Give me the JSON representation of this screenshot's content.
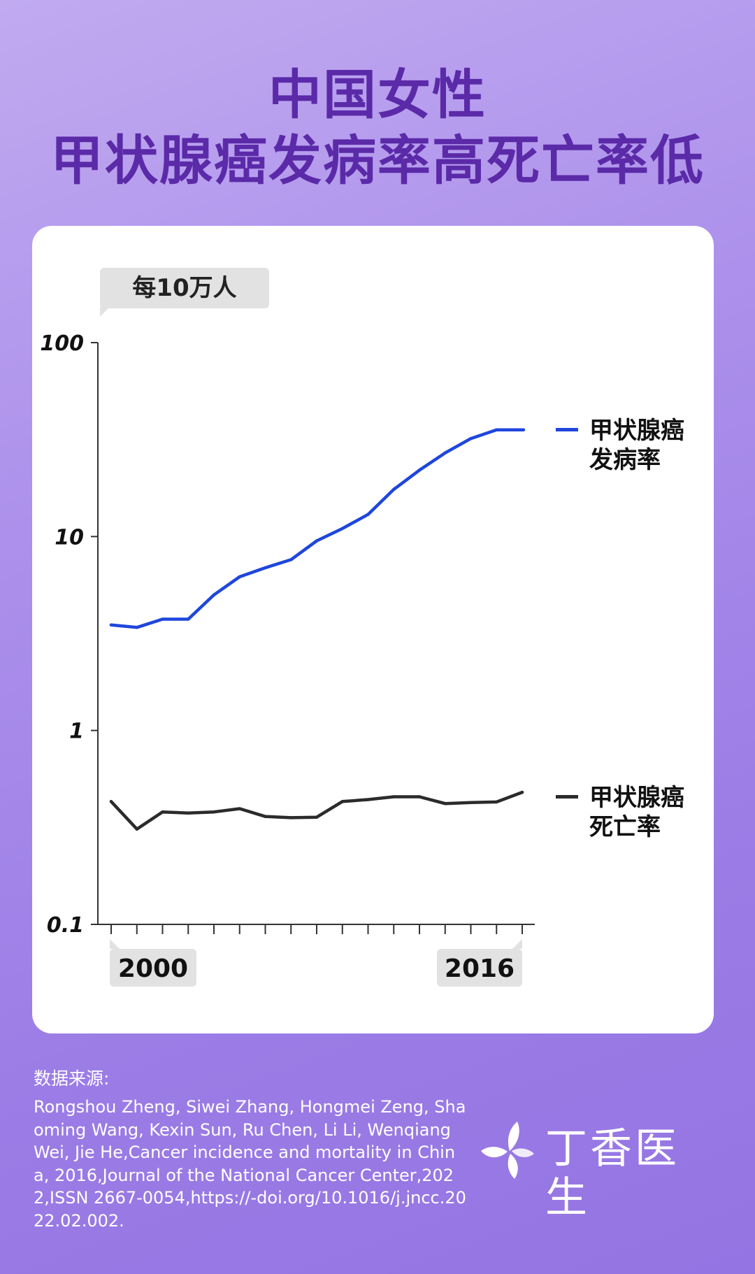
{
  "header": {
    "title_line1": "中国女性",
    "title_line2": "甲状腺癌发病率高死亡率低"
  },
  "chart": {
    "unit_label": "每10万人",
    "x_start_label": "2000",
    "x_end_label": "2016"
  },
  "chart_data": {
    "type": "line",
    "title": "中国女性 甲状腺癌发病率高死亡率低",
    "ylabel": "每10万人",
    "yscale": "log",
    "ylim": [
      0.1,
      100
    ],
    "yticks": [
      "100",
      "10",
      "1",
      "0.1"
    ],
    "xlim": [
      2000,
      2016
    ],
    "x": [
      2000,
      2001,
      2002,
      2003,
      2004,
      2005,
      2006,
      2007,
      2008,
      2009,
      2010,
      2011,
      2012,
      2013,
      2014,
      2015,
      2016
    ],
    "series": [
      {
        "name": "甲状腺癌发病率",
        "color": "#1f46dc",
        "values": [
          3.5,
          3.4,
          3.75,
          3.75,
          5.0,
          6.2,
          6.9,
          7.6,
          9.5,
          11.0,
          13.0,
          17.5,
          22.0,
          27.0,
          32.0,
          35.5,
          35.5
        ]
      },
      {
        "name": "甲状腺癌死亡率",
        "color": "#2b2b2b",
        "values": [
          0.43,
          0.31,
          0.38,
          0.375,
          0.38,
          0.395,
          0.36,
          0.355,
          0.357,
          0.43,
          0.44,
          0.455,
          0.455,
          0.42,
          0.425,
          0.428,
          0.48
        ]
      }
    ],
    "legend": [
      {
        "line1": "甲状腺癌",
        "line2": "发病率"
      },
      {
        "line1": "甲状腺癌",
        "line2": "死亡率"
      }
    ],
    "legend_position": "right",
    "grid": false
  },
  "source": {
    "label": "数据来源:",
    "text": "Rongshou Zheng, Siwei Zhang, Hongmei Zeng, Shaoming Wang, Kexin Sun, Ru Chen, Li Li, Wenqiang Wei, Jie He,Cancer incidence and mortality in China, 2016,Journal of the National Cancer Center,2022,ISSN 2667-0054,https://-doi.org/10.1016/j.jncc.2022.02.002."
  },
  "brand": {
    "name": "丁香医生",
    "icon": "lilac-flower-icon"
  }
}
